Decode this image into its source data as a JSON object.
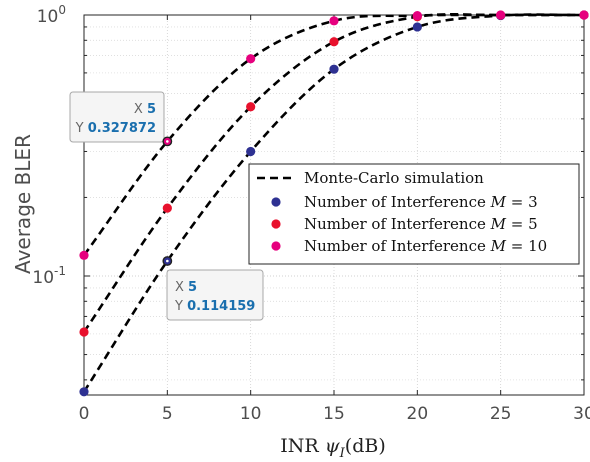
{
  "chart_data": {
    "type": "line",
    "title": "",
    "xlabel": "INR ψ_I(dB)",
    "xlabel_parts": {
      "prefix": "INR ",
      "symbol": "ψ",
      "subscript": "I",
      "suffix": "(dB)"
    },
    "ylabel": "Average BLER",
    "xlim": [
      0,
      30
    ],
    "ylim": [
      0.035,
      1.0
    ],
    "yscale": "log",
    "grid": true,
    "legend_position": "center-right",
    "x_ticks": [
      0,
      5,
      10,
      15,
      20,
      25,
      30
    ],
    "x_tick_labels": [
      "0",
      "5",
      "10",
      "15",
      "20",
      "25",
      "30"
    ],
    "y_tick_labels": [
      {
        "value": 1.0,
        "base": "10",
        "exp": "0"
      },
      {
        "value": 0.1,
        "base": "10",
        "exp": "-1"
      }
    ],
    "x": [
      0,
      5,
      10,
      15,
      20,
      25,
      30
    ],
    "series": [
      {
        "name": "Number of Interference M = 3",
        "label": {
          "text": "Number of Interference ",
          "var": "M",
          "rest": " = 3"
        },
        "color": "#2e3192",
        "values": [
          0.036,
          0.114159,
          0.3,
          0.62,
          0.9,
          0.995,
          1.0
        ]
      },
      {
        "name": "Number of Interference M = 5",
        "label": {
          "text": "Number of Interference ",
          "var": "M",
          "rest": " = 5"
        },
        "color": "#e8112d",
        "values": [
          0.061,
          0.182,
          0.445,
          0.79,
          0.985,
          0.999,
          1.0
        ]
      },
      {
        "name": "Number of Interference M = 10",
        "label": {
          "text": "Number of Interference ",
          "var": "M",
          "rest": " = 10"
        },
        "color": "#e6007e",
        "values": [
          0.12,
          0.327872,
          0.68,
          0.95,
          0.995,
          1.0,
          1.0
        ]
      }
    ],
    "simulation_legend": "Monte-Carlo simulation",
    "datatips": [
      {
        "x_label": "X",
        "x_value": "5",
        "y_label": "Y",
        "y_value": "0.327872",
        "series_index": 2,
        "x": 5,
        "y": 0.327872
      },
      {
        "x_label": "X",
        "x_value": "5",
        "y_label": "Y",
        "y_value": "0.114159",
        "series_index": 0,
        "x": 5,
        "y": 0.114159
      }
    ]
  }
}
